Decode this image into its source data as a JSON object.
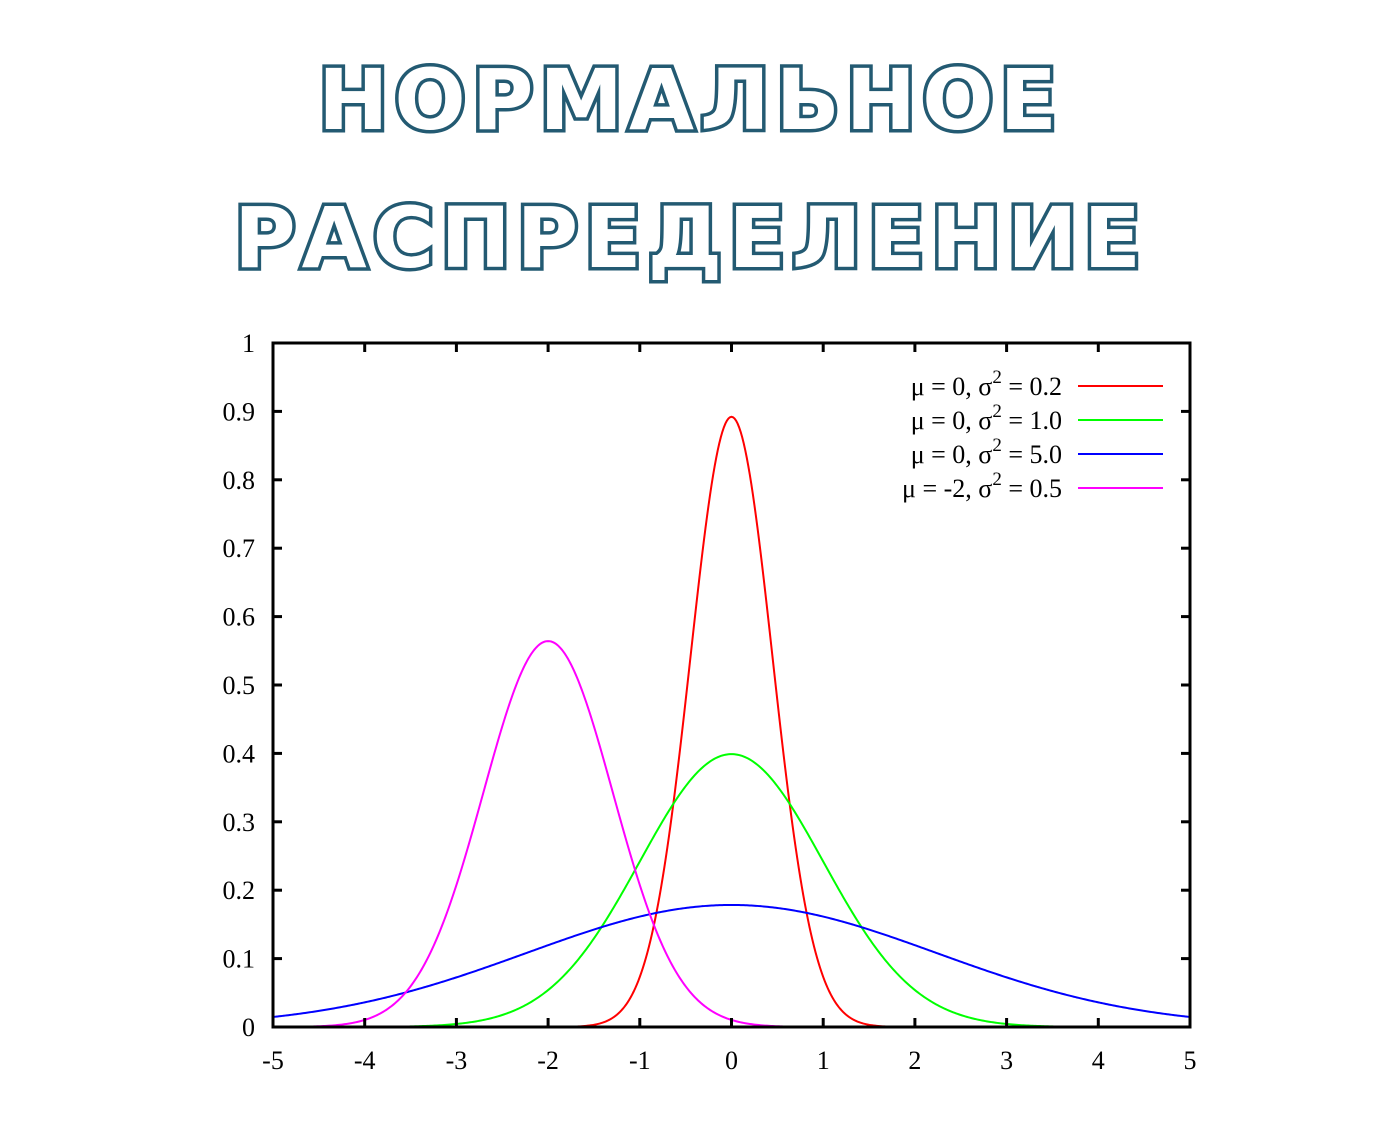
{
  "page_title": {
    "line1": "НОРМАЛЬНОЕ",
    "line2": "РАСПРЕДЕЛЕНИЕ",
    "color": "#235a72"
  },
  "chart_data": {
    "type": "line",
    "xlim": [
      -5,
      5
    ],
    "ylim": [
      0,
      1
    ],
    "x_ticks": [
      "-5",
      "-4",
      "-3",
      "-2",
      "-1",
      "0",
      "1",
      "2",
      "3",
      "4",
      "5"
    ],
    "y_ticks": [
      "0",
      "0.1",
      "0.2",
      "0.3",
      "0.4",
      "0.5",
      "0.6",
      "0.7",
      "0.8",
      "0.9",
      "1"
    ],
    "grid": false,
    "legend_position": "top-right",
    "series": [
      {
        "name": "μ =  0, σ² = 0.2",
        "label_mu": "μ =  0, σ",
        "label_rest": " = 0.2",
        "mu": 0,
        "variance": 0.2,
        "color": "#ff0000"
      },
      {
        "name": "μ =  0, σ² = 1.0",
        "label_mu": "μ =  0, σ",
        "label_rest": " = 1.0",
        "mu": 0,
        "variance": 1.0,
        "color": "#00ff00"
      },
      {
        "name": "μ =  0, σ² = 5.0",
        "label_mu": "μ =  0, σ",
        "label_rest": " = 5.0",
        "mu": 0,
        "variance": 5.0,
        "color": "#0000ff"
      },
      {
        "name": "μ = -2, σ² = 0.5",
        "label_mu": "μ = -2, σ",
        "label_rest": " = 0.5",
        "mu": -2,
        "variance": 0.5,
        "color": "#ff00ff"
      }
    ],
    "superscript": "2"
  }
}
